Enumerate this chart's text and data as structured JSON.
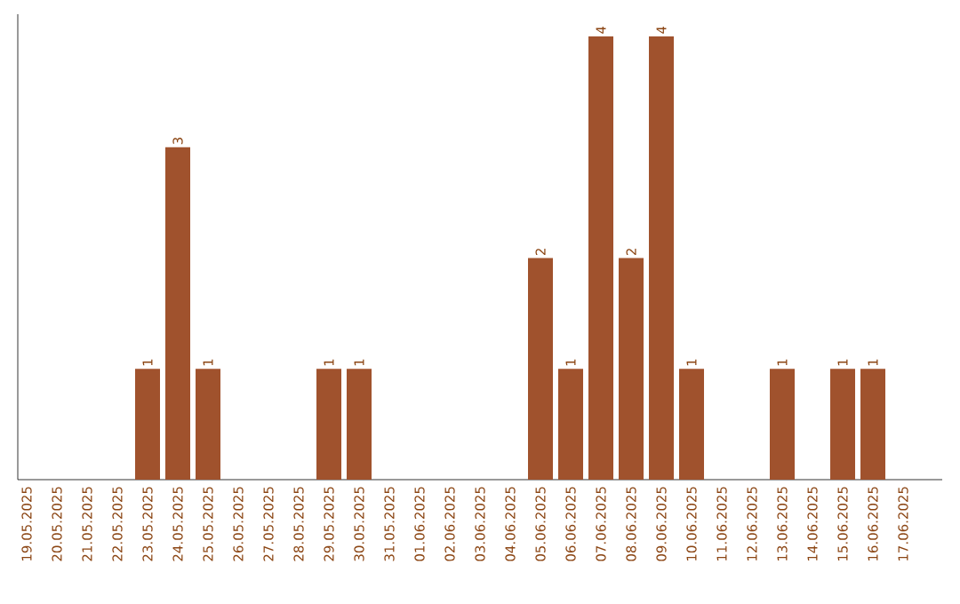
{
  "chart_data": {
    "type": "bar",
    "categories": [
      "19.05.2025",
      "20.05.2025",
      "21.05.2025",
      "22.05.2025",
      "23.05.2025",
      "24.05.2025",
      "25.05.2025",
      "26.05.2025",
      "27.05.2025",
      "28.05.2025",
      "29.05.2025",
      "30.05.2025",
      "31.05.2025",
      "01.06.2025",
      "02.06.2025",
      "03.06.2025",
      "04.06.2025",
      "05.06.2025",
      "06.06.2025",
      "07.06.2025",
      "08.06.2025",
      "09.06.2025",
      "10.06.2025",
      "11.06.2025",
      "12.06.2025",
      "13.06.2025",
      "14.06.2025",
      "15.06.2025",
      "16.06.2025",
      "17.06.2025"
    ],
    "values": [
      null,
      null,
      null,
      null,
      1,
      3,
      1,
      null,
      null,
      null,
      1,
      1,
      null,
      null,
      null,
      null,
      null,
      2,
      1,
      4,
      2,
      4,
      1,
      null,
      null,
      1,
      null,
      1,
      1,
      null
    ],
    "value_labels": [
      null,
      null,
      null,
      null,
      "1",
      "3",
      "1",
      null,
      null,
      null,
      "1",
      "1",
      null,
      null,
      null,
      null,
      null,
      "2",
      "1",
      "4",
      "2",
      "4",
      "1",
      null,
      null,
      "1",
      null,
      "1",
      "1",
      null
    ],
    "color": "#a0522d",
    "tick_labels": "x"
  }
}
